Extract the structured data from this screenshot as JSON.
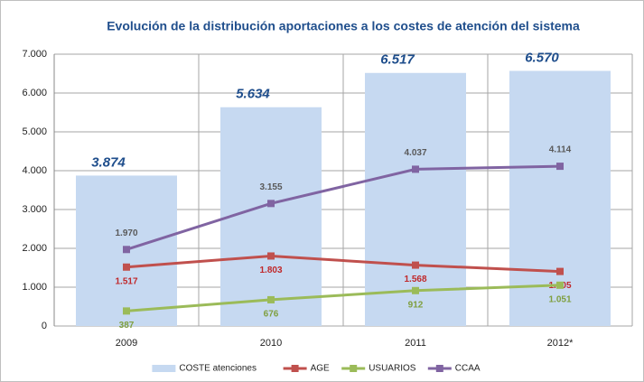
{
  "chart_data": {
    "type": "bar",
    "title": "Evolución de la distribución aportaciones a los costes de atención del sistema",
    "categories": [
      "2009",
      "2010",
      "2011",
      "2012*"
    ],
    "series": [
      {
        "name": "COSTE atenciones",
        "type": "bar",
        "color": "#c6d9f1",
        "values": [
          3874,
          5634,
          6517,
          6570
        ],
        "value_labels": [
          "3.874",
          "5.634",
          "6.517",
          "6.570"
        ],
        "label_color": "#1f4e8c"
      },
      {
        "name": "AGE",
        "type": "line",
        "color": "#c0504d",
        "values": [
          1517,
          1803,
          1568,
          1405
        ],
        "value_labels": [
          "1.517",
          "1.803",
          "1.568",
          "1.405"
        ],
        "label_color": "#c0282a"
      },
      {
        "name": "USUARIOS",
        "type": "line",
        "color": "#9bbb59",
        "values": [
          387,
          676,
          912,
          1051
        ],
        "value_labels": [
          "387",
          "676",
          "912",
          "1.051"
        ],
        "label_color": "#7f9f3f"
      },
      {
        "name": "CCAA",
        "type": "line",
        "color": "#8064a2",
        "values": [
          1970,
          3155,
          4037,
          4114
        ],
        "value_labels": [
          "1.970",
          "3.155",
          "4.037",
          "4.114"
        ],
        "label_color": "#595959"
      }
    ],
    "ylim": [
      0,
      7000
    ],
    "yticks": [
      0,
      {
        "value": 1000,
        "label": "1.000"
      },
      {
        "value": 2000,
        "label": "2.000"
      },
      {
        "value": 3000,
        "label": "3.000"
      },
      {
        "value": 4000,
        "label": "4.000"
      },
      {
        "value": 5000,
        "label": "5.000"
      },
      {
        "value": 6000,
        "label": "6.000"
      },
      {
        "value": 7000,
        "label": "7.000"
      }
    ],
    "grid": true,
    "legend": "bottom"
  }
}
